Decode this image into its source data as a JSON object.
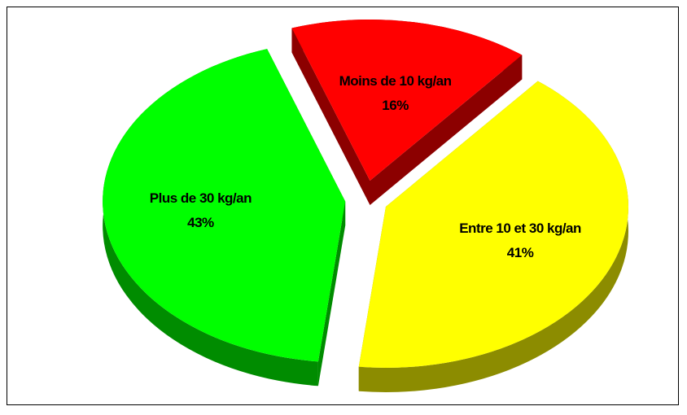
{
  "chart_data": {
    "type": "pie",
    "categories": [
      "Moins de 10 kg/an",
      "Entre 10 et 30 kg/an",
      "Plus de 30 kg/an"
    ],
    "values": [
      16,
      41,
      43
    ],
    "value_labels": [
      "16%",
      "41%",
      "43%"
    ],
    "colors": [
      "#ff0000",
      "#ffff00",
      "#00ff00"
    ]
  }
}
